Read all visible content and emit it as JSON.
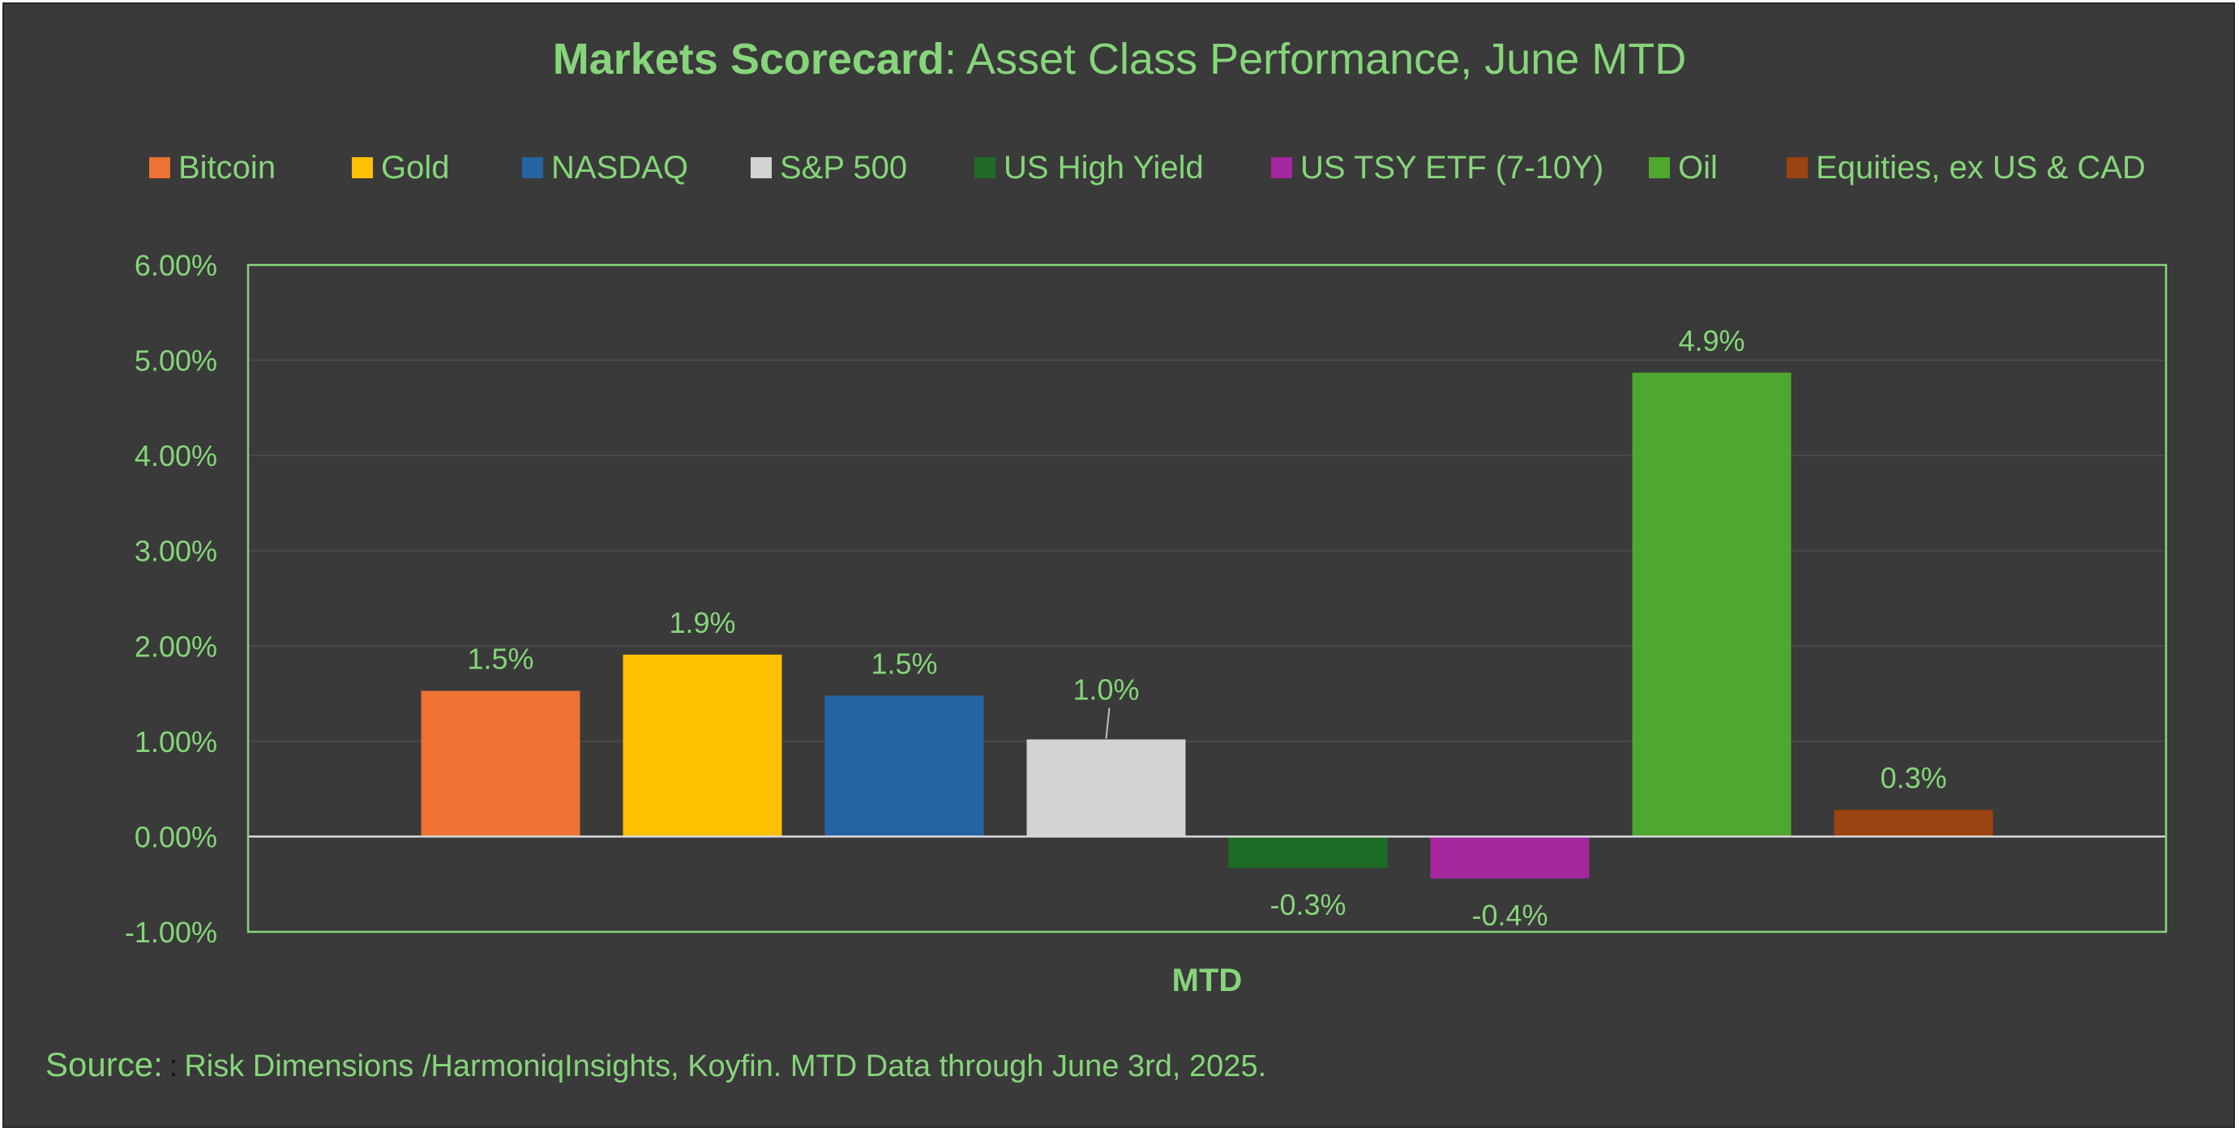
{
  "title": {
    "bold": "Markets Scorecard",
    "rest": ": Asset Class Performance, June MTD"
  },
  "colors": {
    "background": "#3a3a3a",
    "text": "#86d57a",
    "gridline": "#4a4a4a",
    "zero_line": "#d9d9d9"
  },
  "legend": [
    {
      "label": "Bitcoin",
      "color": "#ed7234"
    },
    {
      "label": "Gold",
      "color": "#ffc000"
    },
    {
      "label": "NASDAQ",
      "color": "#2563a3"
    },
    {
      "label": "S&P 500",
      "color": "#d3d3d3"
    },
    {
      "label": "US High Yield",
      "color": "#1e6b25"
    },
    {
      "label": "US TSY ETF (7-10Y)",
      "color": "#a4279d"
    },
    {
      "label": "Oil",
      "color": "#4ea72e"
    },
    {
      "label": "Equities, ex US & CAD",
      "color": "#9c4411"
    }
  ],
  "chart_data": {
    "type": "bar",
    "title": "Markets Scorecard: Asset Class Performance, June MTD",
    "categories": [
      "MTD"
    ],
    "xlabel": "MTD",
    "ylabel": "",
    "ylim": [
      -1.0,
      6.0
    ],
    "ytick_step": 1.0,
    "ytick_labels": [
      "-1.00%",
      "0.00%",
      "1.00%",
      "2.00%",
      "3.00%",
      "4.00%",
      "5.00%",
      "6.00%"
    ],
    "grid": true,
    "legend_position": "top",
    "series": [
      {
        "name": "Bitcoin",
        "values": [
          1.53
        ],
        "label": "1.5%"
      },
      {
        "name": "Gold",
        "values": [
          1.91
        ],
        "label": "1.9%"
      },
      {
        "name": "NASDAQ",
        "values": [
          1.48
        ],
        "label": "1.5%"
      },
      {
        "name": "S&P 500",
        "values": [
          1.02
        ],
        "label": "1.0%"
      },
      {
        "name": "US High Yield",
        "values": [
          -0.33
        ],
        "label": "-0.3%"
      },
      {
        "name": "US TSY ETF (7-10Y)",
        "values": [
          -0.44
        ],
        "label": "-0.4%"
      },
      {
        "name": "Oil",
        "values": [
          4.87
        ],
        "label": "4.9%"
      },
      {
        "name": "Equities, ex US & CAD",
        "values": [
          0.28
        ],
        "label": "0.3%"
      }
    ]
  },
  "source": {
    "lead": "Source:",
    "separator": ":",
    "text": "Risk Dimensions /HarmoniqInsights, Koyfin. MTD Data through June 3rd, 2025."
  }
}
